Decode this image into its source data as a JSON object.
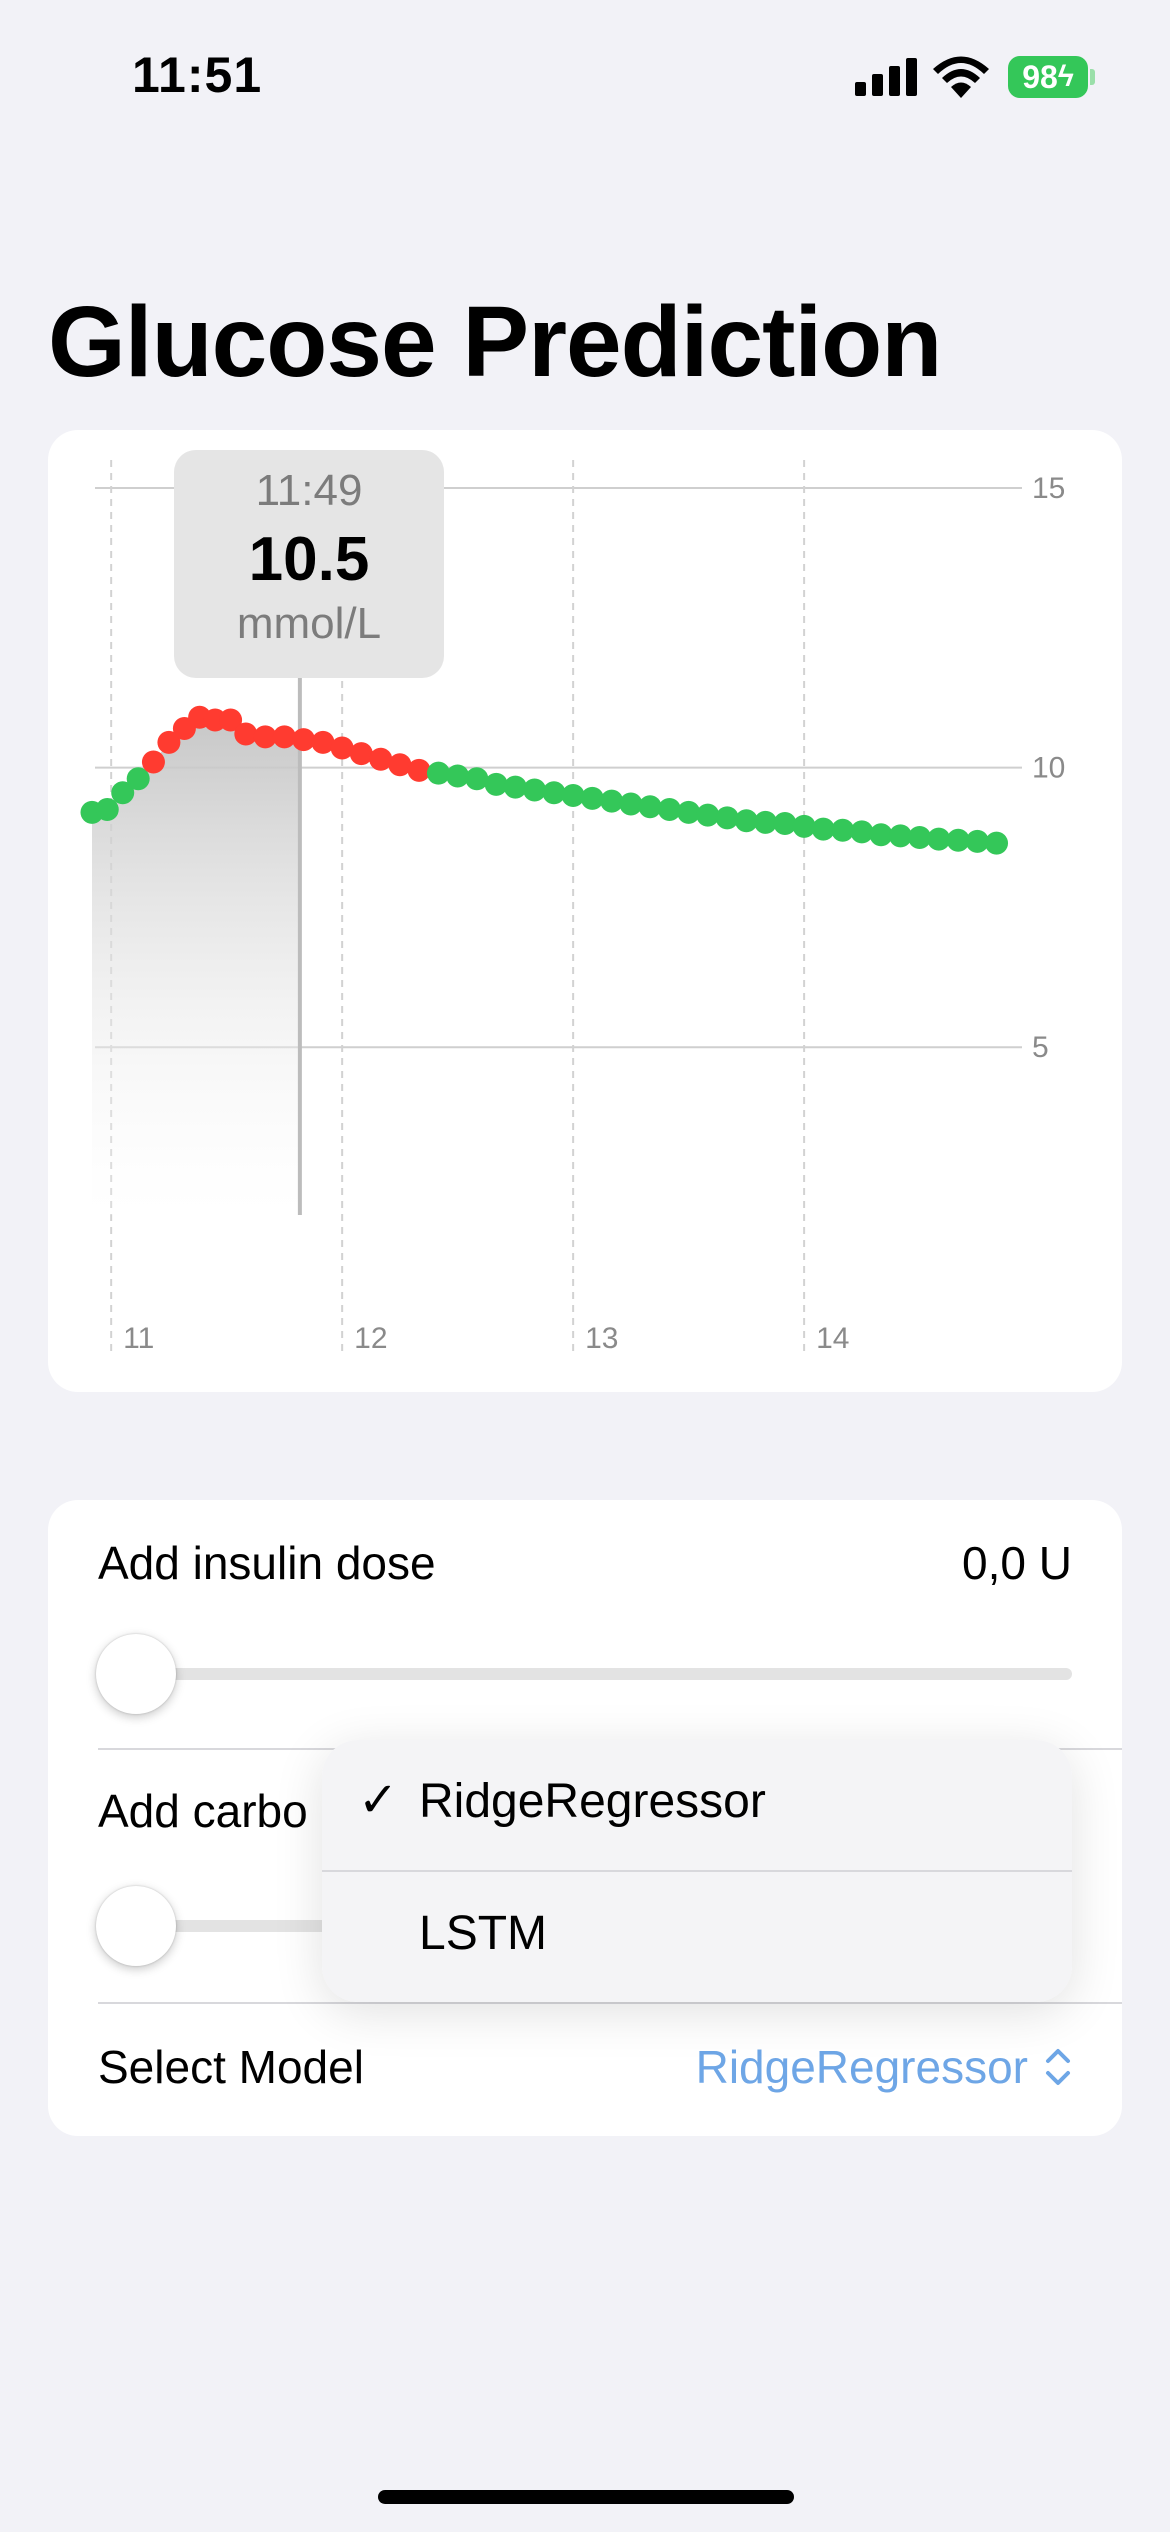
{
  "status_bar": {
    "time": "11:51",
    "battery": "98",
    "icons": [
      "cellular-signal-icon",
      "wifi-icon",
      "battery-charging-icon"
    ]
  },
  "page": {
    "title": "Glucose Prediction"
  },
  "chart_data": {
    "type": "scatter",
    "title": "",
    "xlabel": "",
    "ylabel": "",
    "x_ticks": [
      "11",
      "12",
      "13",
      "14"
    ],
    "y_ticks": [
      "5",
      "10",
      "15"
    ],
    "xlim": [
      10.93,
      14.9
    ],
    "ylim": [
      2.0,
      15.5
    ],
    "grid": true,
    "colors": {
      "in_range": "#34c759",
      "high": "#ff3b30",
      "area": "#c8c8c8",
      "rule": "#bcbcbc"
    },
    "series": [
      {
        "x": [
          10.917,
          10.983,
          11.05,
          11.117,
          11.183,
          11.25,
          11.317,
          11.383,
          11.45,
          11.517,
          11.583,
          11.667,
          11.75,
          11.833,
          11.917,
          12.0,
          12.083,
          12.167,
          12.25,
          12.333,
          12.417,
          12.5,
          12.583,
          12.667,
          12.75,
          12.833,
          12.917,
          13.0,
          13.083,
          13.167,
          13.25,
          13.333,
          13.417,
          13.5,
          13.583,
          13.667,
          13.75,
          13.833,
          13.917,
          14.0,
          14.083,
          14.167,
          14.25,
          14.333,
          14.417,
          14.5,
          14.583,
          14.667,
          14.75,
          14.833
        ],
        "y": [
          9.2,
          9.25,
          9.55,
          9.8,
          10.1,
          10.45,
          10.7,
          10.9,
          10.85,
          10.85,
          10.6,
          10.55,
          10.55,
          10.5,
          10.45,
          10.35,
          10.25,
          10.15,
          10.05,
          9.95,
          9.9,
          9.85,
          9.8,
          9.7,
          9.65,
          9.6,
          9.55,
          9.5,
          9.45,
          9.4,
          9.35,
          9.3,
          9.25,
          9.2,
          9.15,
          9.1,
          9.05,
          9.02,
          9.0,
          8.95,
          8.9,
          8.88,
          8.85,
          8.8,
          8.78,
          8.75,
          8.72,
          8.7,
          8.68,
          8.65
        ],
        "status": [
          "normal",
          "normal",
          "normal",
          "normal",
          "high",
          "high",
          "high",
          "high",
          "high",
          "high",
          "high",
          "high",
          "high",
          "high",
          "high",
          "high",
          "high",
          "high",
          "high",
          "high",
          "normal",
          "normal",
          "normal",
          "normal",
          "normal",
          "normal",
          "normal",
          "normal",
          "normal",
          "normal",
          "normal",
          "normal",
          "normal",
          "normal",
          "normal",
          "normal",
          "normal",
          "normal",
          "normal",
          "normal",
          "normal",
          "normal",
          "normal",
          "normal",
          "normal",
          "normal",
          "normal",
          "normal",
          "normal",
          "normal"
        ]
      }
    ],
    "selection": {
      "time": "11:49",
      "x": 11.817,
      "value": "10.5",
      "unit": "mmol/L"
    }
  },
  "controls": {
    "insulin": {
      "label": "Add insulin dose",
      "value": "0,0 U",
      "level": 0
    },
    "carbs": {
      "label": "Add carbo",
      "level": 0
    },
    "model": {
      "label": "Select Model",
      "value": "RidgeRegressor"
    }
  },
  "model_menu": {
    "checkmark": "✓",
    "options": [
      {
        "label": "RidgeRegressor",
        "selected": true
      },
      {
        "label": "LSTM",
        "selected": false
      }
    ]
  }
}
